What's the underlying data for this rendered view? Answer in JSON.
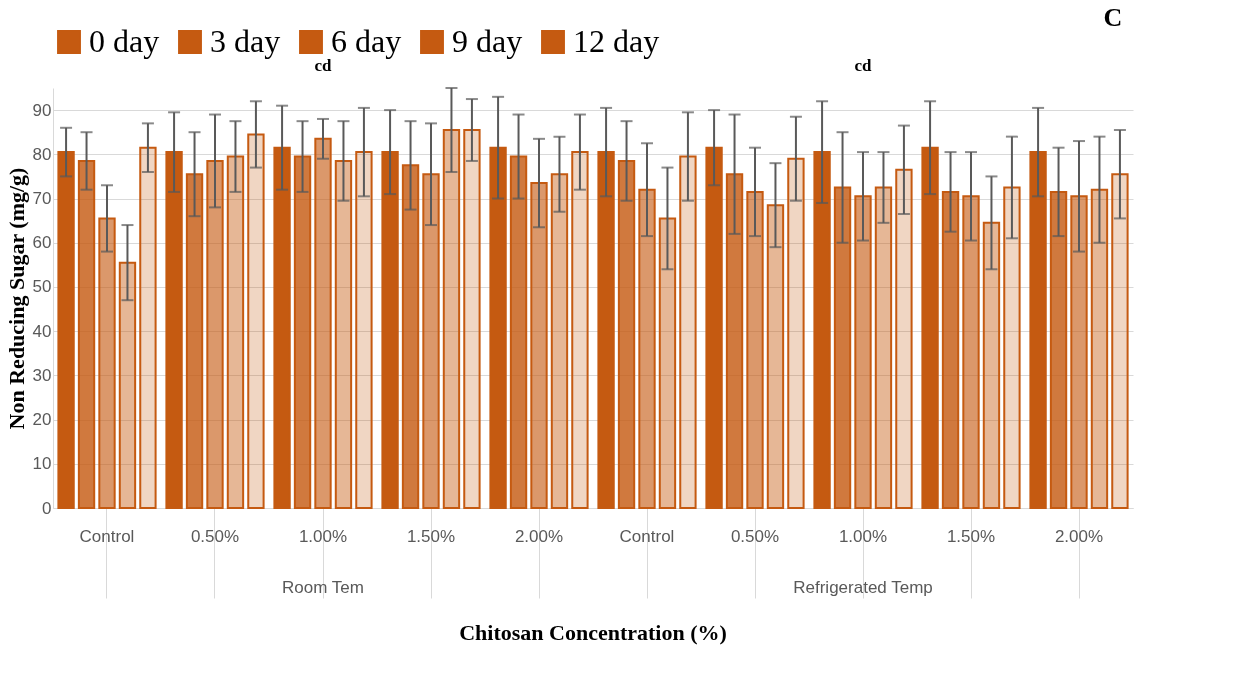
{
  "chart_data": {
    "type": "bar",
    "xlabel": "Chitosan Concentration (%)",
    "ylabel": "Non Reducing Sugar (mg/g)",
    "categories": [
      "Control",
      "0.50%",
      "1.00%",
      "1.50%",
      "2.00%",
      "Control",
      "0.50%",
      "1.00%",
      "1.50%",
      "2.00%"
    ],
    "series": [
      {
        "name": "0 day",
        "color": "#c55a11",
        "values": [
          80.5,
          80.5,
          81.5,
          80.5,
          81.5,
          80.5,
          81.5,
          80.5,
          81.5,
          80.5
        ],
        "errors": [
          5.5,
          9,
          9.5,
          9.5,
          11.5,
          10,
          8.5,
          11.5,
          10.5,
          10
        ]
      },
      {
        "name": "3 day",
        "color": "#c55a11",
        "values": [
          78.5,
          75.5,
          79.5,
          77.5,
          79.5,
          78.5,
          75.5,
          72.5,
          71.5,
          71.5
        ],
        "errors": [
          6.5,
          9.5,
          8,
          10,
          9.5,
          9,
          13.5,
          12.5,
          9,
          10
        ]
      },
      {
        "name": "6 day",
        "color": "#c55a11",
        "values": [
          65.5,
          78.5,
          83.5,
          75.5,
          73.5,
          72,
          71.5,
          70.5,
          70.5,
          70.5
        ],
        "errors": [
          7.5,
          10.5,
          4.5,
          11.5,
          10,
          10.5,
          10,
          10,
          10,
          12.5
        ]
      },
      {
        "name": "9 day",
        "color": "#c55a11",
        "values": [
          55.5,
          79.5,
          78.5,
          85.5,
          75.5,
          65.5,
          68.5,
          72.5,
          64.5,
          72
        ],
        "errors": [
          8.5,
          8,
          9,
          9.5,
          8.5,
          11.5,
          9.5,
          8,
          10.5,
          12
        ]
      },
      {
        "name": "12 day",
        "color": "#c55a11",
        "values": [
          81.5,
          84.5,
          80.5,
          85.5,
          80.5,
          79.5,
          79,
          76.5,
          72.5,
          75.5
        ],
        "errors": [
          5.5,
          7.5,
          10,
          7,
          8.5,
          10,
          9.5,
          10,
          11.5,
          10
        ]
      }
    ],
    "ylim": [
      0,
      95
    ],
    "yticks": [
      0,
      10,
      20,
      30,
      40,
      50,
      60,
      70,
      80,
      90
    ],
    "grid": "y",
    "legend": "top",
    "annotations": [
      "cd",
      "cd",
      "C",
      "Room Tem",
      "Refrigerated Temp"
    ]
  }
}
